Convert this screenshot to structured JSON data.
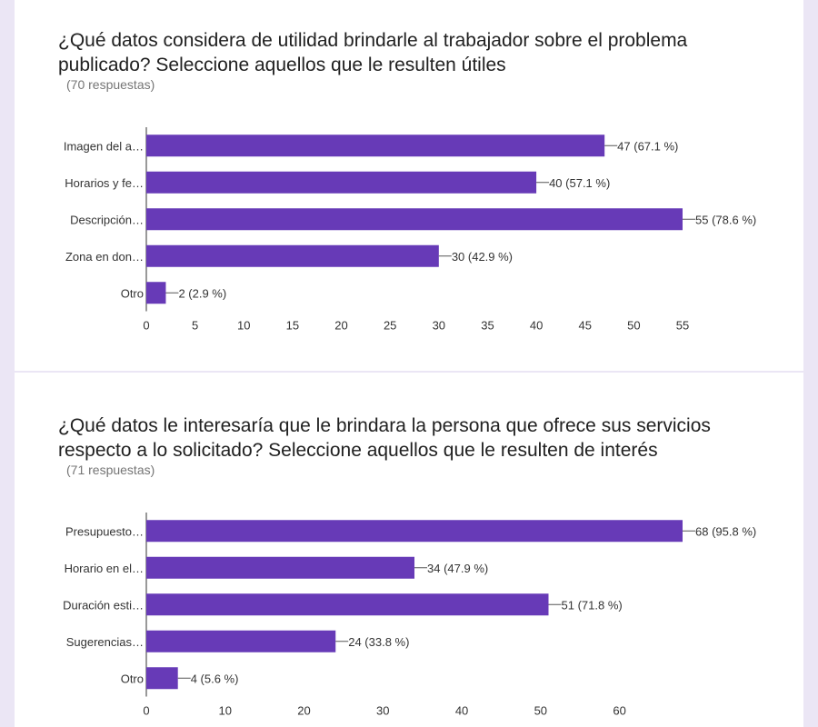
{
  "colors": {
    "bar": "#673ab7",
    "axis": "#333333",
    "text": "#333333",
    "background": "#ebe6f5"
  },
  "chart_data": [
    {
      "type": "bar",
      "orientation": "horizontal",
      "title": "¿Qué datos considera de utilidad brindarle al trabajador sobre el problema publicado? Seleccione aquellos que le resulten útiles",
      "responses_label": "(70 respuestas)",
      "categories": [
        "Imagen del a…",
        "Horarios y fe…",
        "Descripción…",
        "Zona en don…",
        "Otro"
      ],
      "values": [
        47,
        40,
        55,
        30,
        2
      ],
      "value_labels": [
        "47 (67.1 %)",
        "40 (57.1 %)",
        "55 (78.6 %)",
        "30 (42.9 %)",
        "2 (2.9 %)"
      ],
      "xticks": [
        0,
        5,
        10,
        15,
        20,
        25,
        30,
        35,
        40,
        45,
        50,
        55
      ],
      "xlim": [
        0,
        55
      ],
      "grid": false
    },
    {
      "type": "bar",
      "orientation": "horizontal",
      "title": "¿Qué datos le interesaría que le brindara la persona que ofrece sus servicios respecto a lo solicitado? Seleccione aquellos que le resulten de interés",
      "responses_label": "(71 respuestas)",
      "categories": [
        "Presupuesto…",
        "Horario en el…",
        "Duración esti…",
        "Sugerencias…",
        "Otro"
      ],
      "values": [
        68,
        34,
        51,
        24,
        4
      ],
      "value_labels": [
        "68 (95.8 %)",
        "34 (47.9 %)",
        "51 (71.8 %)",
        "24 (33.8 %)",
        "4 (5.6 %)"
      ],
      "xticks": [
        0,
        10,
        20,
        30,
        40,
        50,
        60
      ],
      "xlim": [
        0,
        68
      ],
      "grid": false
    }
  ]
}
